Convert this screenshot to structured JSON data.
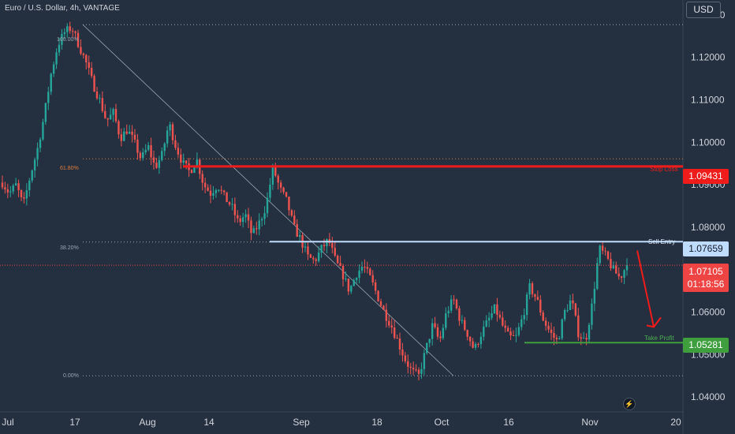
{
  "header": {
    "symbol_title": "Euro / U.S. Dollar, 4h, VANTAGE",
    "currency": "USD"
  },
  "chart_data": {
    "type": "candlestick",
    "title": "Euro / U.S. Dollar, 4h, VANTAGE",
    "y_axis": {
      "ticks": [
        "1.13000",
        "1.12000",
        "1.11000",
        "1.10000",
        "1.09000",
        "1.08000",
        "1.06000",
        "1.05000",
        "1.04000"
      ],
      "ylim": [
        1.0365,
        1.1335
      ]
    },
    "x_axis": {
      "ticks": [
        "Jul",
        "17",
        "Aug",
        "14",
        "Sep",
        "18",
        "Oct",
        "16",
        "Nov",
        "20"
      ]
    },
    "price_path": [
      1.0905,
      1.088,
      1.09,
      1.085,
      1.092,
      1.098,
      1.106,
      1.116,
      1.123,
      1.126,
      1.127,
      1.123,
      1.119,
      1.114,
      1.11,
      1.105,
      1.107,
      1.101,
      1.103,
      1.1,
      1.096,
      1.099,
      1.094,
      1.097,
      1.1045,
      1.099,
      1.095,
      1.093,
      1.096,
      1.09,
      1.088,
      1.09,
      1.087,
      1.085,
      1.081,
      1.083,
      1.078,
      1.081,
      1.085,
      1.094,
      1.089,
      1.086,
      1.08,
      1.077,
      1.073,
      1.072,
      1.075,
      1.077,
      1.072,
      1.069,
      1.065,
      1.069,
      1.071,
      1.068,
      1.064,
      1.06,
      1.057,
      1.053,
      1.049,
      1.046,
      1.045,
      1.051,
      1.057,
      1.053,
      1.06,
      1.063,
      1.058,
      1.055,
      1.051,
      1.055,
      1.058,
      1.061,
      1.057,
      1.054,
      1.054,
      1.059,
      1.066,
      1.063,
      1.058,
      1.055,
      1.053,
      1.06,
      1.063,
      1.055,
      1.053,
      1.062,
      1.075,
      1.073,
      1.07,
      1.068,
      1.0713
    ],
    "levels": [
      {
        "name": "Stop Loss",
        "price": 1.09431,
        "label": "Stop Loss",
        "tag": "1.09431",
        "color": "#f01b1b"
      },
      {
        "name": "Sell Entry",
        "price": 1.07659,
        "label": "Sell Entry",
        "tag": "1.07659",
        "color": "#bfdbfe"
      },
      {
        "name": "Take Profit",
        "price": 1.05281,
        "label": "Take Profit",
        "tag": "1.05281",
        "color": "#3f9f3f"
      }
    ],
    "current": {
      "price": "1.07105",
      "countdown": "01:18:56"
    },
    "fibonacci": [
      {
        "level": "100.00%",
        "price": 1.1277
      },
      {
        "level": "61.80%",
        "price": 1.0961
      },
      {
        "level": "38.20%",
        "price": 1.0765
      },
      {
        "level": "0.00%",
        "price": 1.045
      }
    ]
  }
}
